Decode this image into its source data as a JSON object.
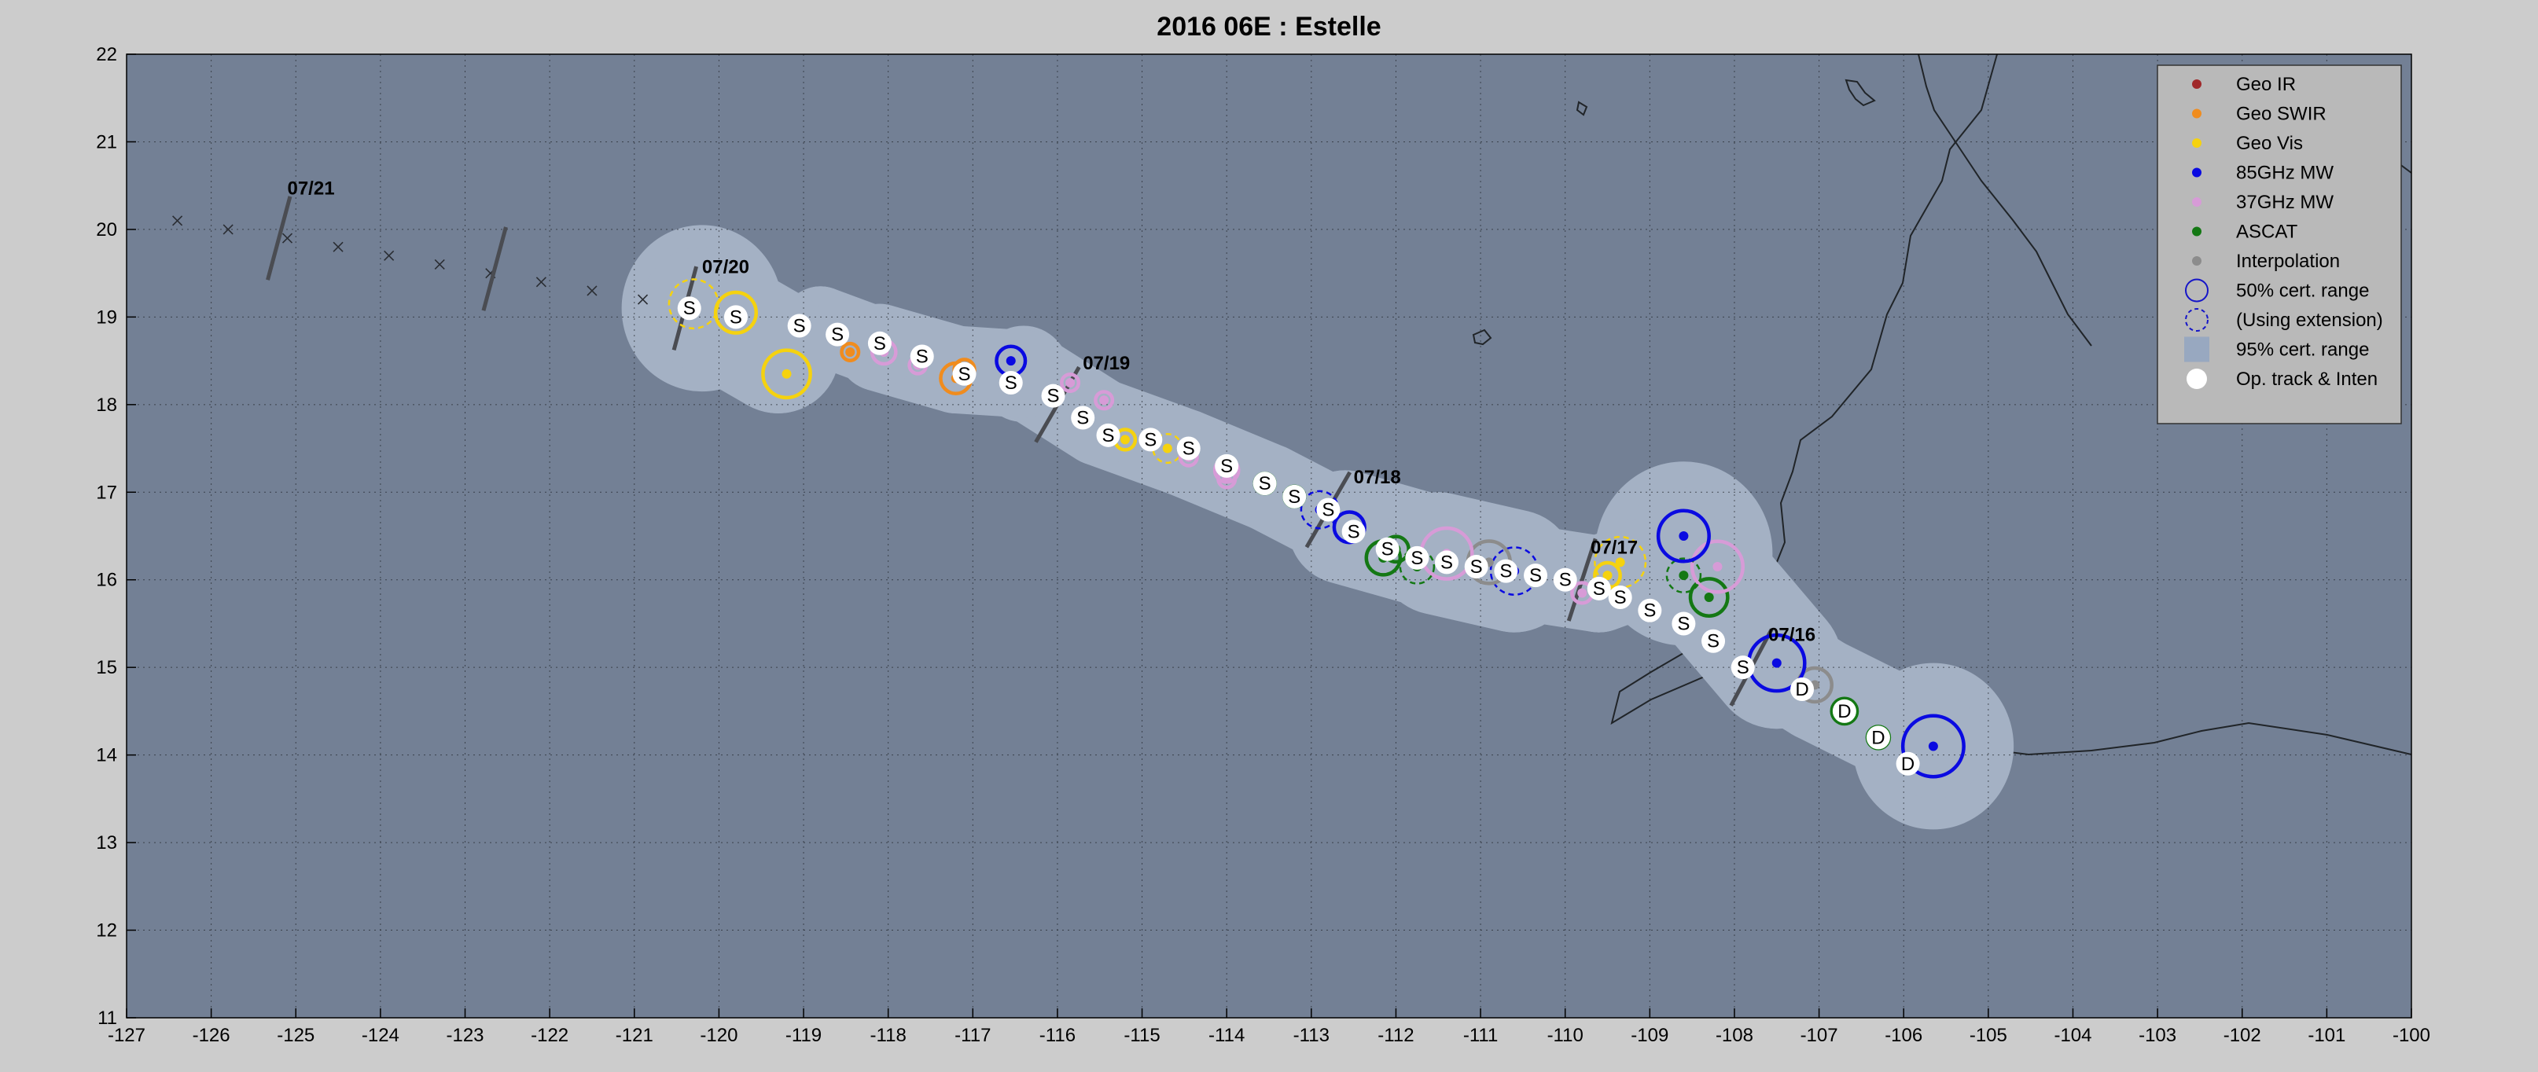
{
  "chart_data": {
    "type": "scatter",
    "title": "2016  06E :  Estelle",
    "xlim": [
      -127,
      -100
    ],
    "ylim": [
      11,
      22
    ],
    "xticks": [
      "-127",
      "-126",
      "-125",
      "-124",
      "-123",
      "-122",
      "-121",
      "-120",
      "-119",
      "-118",
      "-117",
      "-116",
      "-115",
      "-114",
      "-113",
      "-112",
      "-111",
      "-110",
      "-109",
      "-108",
      "-107",
      "-106",
      "-105",
      "-104",
      "-103",
      "-102",
      "-101",
      "-100"
    ],
    "yticks": [
      "11",
      "12",
      "13",
      "14",
      "15",
      "16",
      "17",
      "18",
      "19",
      "20",
      "21",
      "22"
    ],
    "grid": true,
    "legend_position": "top-right",
    "colors": {
      "background": "#cccccc",
      "ocean": "#738095",
      "cone": "#a4b1c4",
      "geo_ir": "#a0282a",
      "geo_swir": "#f08c1e",
      "geo_vis": "#f5d20f",
      "mw85": "#0a0ae1",
      "mw37": "#d79bd7",
      "ascat": "#147814",
      "interp": "#8c8c8c"
    },
    "legend": [
      {
        "label": "Geo IR",
        "kind": "dot",
        "color": "#a0282a"
      },
      {
        "label": "Geo SWIR",
        "kind": "dot",
        "color": "#f08c1e"
      },
      {
        "label": "Geo Vis",
        "kind": "dot",
        "color": "#f5d20f"
      },
      {
        "label": "85GHz MW",
        "kind": "dot",
        "color": "#0a0ae1"
      },
      {
        "label": "37GHz MW",
        "kind": "dot",
        "color": "#d79bd7"
      },
      {
        "label": "ASCAT",
        "kind": "dot",
        "color": "#147814"
      },
      {
        "label": "Interpolation",
        "kind": "dot",
        "color": "#8c8c8c"
      },
      {
        "label": "50% cert. range",
        "kind": "circle"
      },
      {
        "label": "(Using extension)",
        "kind": "dashed"
      },
      {
        "label": "95% cert. range",
        "kind": "square"
      },
      {
        "label": "Op. track & Inten",
        "kind": "white"
      }
    ],
    "date_labels": [
      {
        "text": "07/21",
        "lon": -125.1,
        "lat": 20.4
      },
      {
        "text": "07/20",
        "lon": -120.2,
        "lat": 19.5
      },
      {
        "text": "07/19",
        "lon": -115.7,
        "lat": 18.4
      },
      {
        "text": "07/18",
        "lon": -112.5,
        "lat": 17.1
      },
      {
        "text": "07/17",
        "lon": -109.7,
        "lat": 16.3
      },
      {
        "text": "07/16",
        "lon": -107.6,
        "lat": 15.3
      }
    ],
    "day_marks": [
      {
        "lon": -125.2,
        "lat": 19.9,
        "angle": 75
      },
      {
        "lon": -120.4,
        "lat": 19.1,
        "angle": 75
      },
      {
        "lon": -116.0,
        "lat": 18.0,
        "angle": 60
      },
      {
        "lon": -112.8,
        "lat": 16.8,
        "angle": 60
      },
      {
        "lon": -109.8,
        "lat": 16.0,
        "angle": 72
      },
      {
        "lon": -107.8,
        "lat": 15.0,
        "angle": 62
      },
      {
        "lon": -122.65,
        "lat": 19.55,
        "angle": 75
      }
    ],
    "forecast_track": [
      {
        "lon": -126.4,
        "lat": 20.1
      },
      {
        "lon": -125.8,
        "lat": 20.0
      },
      {
        "lon": -125.1,
        "lat": 19.9
      },
      {
        "lon": -124.5,
        "lat": 19.8
      },
      {
        "lon": -123.9,
        "lat": 19.7
      },
      {
        "lon": -123.3,
        "lat": 19.6
      },
      {
        "lon": -122.7,
        "lat": 19.5
      },
      {
        "lon": -122.1,
        "lat": 19.4
      },
      {
        "lon": -121.5,
        "lat": 19.3
      },
      {
        "lon": -120.9,
        "lat": 19.2
      }
    ],
    "op_track": [
      {
        "lon": -105.95,
        "lat": 13.9,
        "intensity": "D"
      },
      {
        "lon": -106.3,
        "lat": 14.2,
        "intensity": "D"
      },
      {
        "lon": -106.7,
        "lat": 14.5,
        "intensity": "D"
      },
      {
        "lon": -107.2,
        "lat": 14.75,
        "intensity": "D"
      },
      {
        "lon": -107.9,
        "lat": 15.0,
        "intensity": "S"
      },
      {
        "lon": -108.25,
        "lat": 15.3,
        "intensity": "S"
      },
      {
        "lon": -108.6,
        "lat": 15.5,
        "intensity": "S"
      },
      {
        "lon": -109.0,
        "lat": 15.65,
        "intensity": "S"
      },
      {
        "lon": -109.35,
        "lat": 15.8,
        "intensity": "S"
      },
      {
        "lon": -109.6,
        "lat": 15.9,
        "intensity": "S"
      },
      {
        "lon": -110.0,
        "lat": 16.0,
        "intensity": "S"
      },
      {
        "lon": -110.35,
        "lat": 16.05,
        "intensity": "S"
      },
      {
        "lon": -110.7,
        "lat": 16.1,
        "intensity": "S"
      },
      {
        "lon": -111.05,
        "lat": 16.15,
        "intensity": "S"
      },
      {
        "lon": -111.4,
        "lat": 16.2,
        "intensity": "S"
      },
      {
        "lon": -111.75,
        "lat": 16.25,
        "intensity": "S"
      },
      {
        "lon": -112.1,
        "lat": 16.35,
        "intensity": "S"
      },
      {
        "lon": -112.5,
        "lat": 16.55,
        "intensity": "S"
      },
      {
        "lon": -112.8,
        "lat": 16.8,
        "intensity": "S"
      },
      {
        "lon": -113.2,
        "lat": 16.95,
        "intensity": "S"
      },
      {
        "lon": -113.55,
        "lat": 17.1,
        "intensity": "S"
      },
      {
        "lon": -114.0,
        "lat": 17.3,
        "intensity": "S"
      },
      {
        "lon": -114.45,
        "lat": 17.5,
        "intensity": "S"
      },
      {
        "lon": -114.9,
        "lat": 17.6,
        "intensity": "S"
      },
      {
        "lon": -115.4,
        "lat": 17.65,
        "intensity": "S"
      },
      {
        "lon": -115.7,
        "lat": 17.85,
        "intensity": "S"
      },
      {
        "lon": -116.05,
        "lat": 18.1,
        "intensity": "S"
      },
      {
        "lon": -116.55,
        "lat": 18.25,
        "intensity": "S"
      },
      {
        "lon": -117.1,
        "lat": 18.35,
        "intensity": "S"
      },
      {
        "lon": -117.6,
        "lat": 18.55,
        "intensity": "S"
      },
      {
        "lon": -118.1,
        "lat": 18.7,
        "intensity": "S"
      },
      {
        "lon": -118.6,
        "lat": 18.8,
        "intensity": "S"
      },
      {
        "lon": -119.05,
        "lat": 18.9,
        "intensity": "S"
      },
      {
        "lon": -119.8,
        "lat": 19.0,
        "intensity": "S"
      },
      {
        "lon": -120.35,
        "lat": 19.1,
        "intensity": "S"
      }
    ],
    "fixes": [
      {
        "sensor": "mw85",
        "lon": -105.65,
        "lat": 14.1,
        "r": 0.36,
        "dashed": false
      },
      {
        "sensor": "ascat",
        "lon": -106.3,
        "lat": 14.2,
        "r": 0.13,
        "dashed": false
      },
      {
        "sensor": "ascat",
        "lon": -106.7,
        "lat": 14.5,
        "r": 0.15,
        "dashed": false
      },
      {
        "sensor": "interp",
        "lon": -107.05,
        "lat": 14.8,
        "r": 0.2,
        "dashed": false
      },
      {
        "sensor": "mw85",
        "lon": -107.5,
        "lat": 15.05,
        "r": 0.33,
        "dashed": false
      },
      {
        "sensor": "ascat",
        "lon": -108.3,
        "lat": 15.8,
        "r": 0.22,
        "dashed": false
      },
      {
        "sensor": "mw37",
        "lon": -108.2,
        "lat": 16.15,
        "r": 0.3,
        "dashed": false
      },
      {
        "sensor": "ascat",
        "lon": -108.6,
        "lat": 16.05,
        "r": 0.2,
        "dashed": true
      },
      {
        "sensor": "mw85",
        "lon": -108.6,
        "lat": 16.5,
        "r": 0.3,
        "dashed": false
      },
      {
        "sensor": "geo_vis",
        "lon": -109.35,
        "lat": 16.2,
        "r": 0.3,
        "dashed": true
      },
      {
        "sensor": "geo_vis",
        "lon": -109.5,
        "lat": 16.05,
        "r": 0.15,
        "dashed": false
      },
      {
        "sensor": "mw37",
        "lon": -109.8,
        "lat": 15.85,
        "r": 0.12,
        "dashed": false
      },
      {
        "sensor": "mw85",
        "lon": -110.6,
        "lat": 16.1,
        "r": 0.28,
        "dashed": true
      },
      {
        "sensor": "interp",
        "lon": -110.9,
        "lat": 16.2,
        "r": 0.25,
        "dashed": false
      },
      {
        "sensor": "mw37",
        "lon": -111.4,
        "lat": 16.3,
        "r": 0.3,
        "dashed": false
      },
      {
        "sensor": "ascat",
        "lon": -111.75,
        "lat": 16.15,
        "r": 0.2,
        "dashed": true
      },
      {
        "sensor": "ascat",
        "lon": -112.15,
        "lat": 16.25,
        "r": 0.2,
        "dashed": false
      },
      {
        "sensor": "ascat",
        "lon": -112.0,
        "lat": 16.35,
        "r": 0.15,
        "dashed": false
      },
      {
        "sensor": "mw85",
        "lon": -112.55,
        "lat": 16.6,
        "r": 0.18,
        "dashed": false
      },
      {
        "sensor": "mw85",
        "lon": -112.9,
        "lat": 16.8,
        "r": 0.22,
        "dashed": true
      },
      {
        "sensor": "ascat",
        "lon": -113.2,
        "lat": 16.95,
        "r": 0.12,
        "dashed": false
      },
      {
        "sensor": "ascat",
        "lon": -113.55,
        "lat": 17.1,
        "r": 0.12,
        "dashed": false
      },
      {
        "sensor": "mw37",
        "lon": -114.0,
        "lat": 17.25,
        "r": 0.14,
        "dashed": false
      },
      {
        "sensor": "mw37",
        "lon": -114.0,
        "lat": 17.15,
        "r": 0.1,
        "dashed": false
      },
      {
        "sensor": "geo_vis",
        "lon": -114.7,
        "lat": 17.5,
        "r": 0.17,
        "dashed": true
      },
      {
        "sensor": "mw37",
        "lon": -114.45,
        "lat": 17.4,
        "r": 0.1,
        "dashed": false
      },
      {
        "sensor": "geo_vis",
        "lon": -115.2,
        "lat": 17.6,
        "r": 0.12,
        "dashed": false
      },
      {
        "sensor": "mw37",
        "lon": -115.45,
        "lat": 18.05,
        "r": 0.1,
        "dashed": false
      },
      {
        "sensor": "mw37",
        "lon": -115.85,
        "lat": 18.25,
        "r": 0.1,
        "dashed": false
      },
      {
        "sensor": "mw85",
        "lon": -116.55,
        "lat": 18.5,
        "r": 0.17,
        "dashed": false
      },
      {
        "sensor": "geo_swir",
        "lon": -117.2,
        "lat": 18.3,
        "r": 0.18,
        "dashed": false
      },
      {
        "sensor": "geo_swir",
        "lon": -117.1,
        "lat": 18.4,
        "r": 0.12,
        "dashed": false
      },
      {
        "sensor": "mw37",
        "lon": -117.65,
        "lat": 18.45,
        "r": 0.1,
        "dashed": false
      },
      {
        "sensor": "mw37",
        "lon": -118.05,
        "lat": 18.6,
        "r": 0.14,
        "dashed": false
      },
      {
        "sensor": "geo_swir",
        "lon": -118.45,
        "lat": 18.6,
        "r": 0.1,
        "dashed": false
      },
      {
        "sensor": "geo_vis",
        "lon": -119.2,
        "lat": 18.35,
        "r": 0.28,
        "dashed": false
      },
      {
        "sensor": "geo_vis",
        "lon": -119.8,
        "lat": 19.05,
        "r": 0.24,
        "dashed": false
      },
      {
        "sensor": "geo_vis",
        "lon": -120.3,
        "lat": 19.15,
        "r": 0.29,
        "dashed": true
      }
    ],
    "cone_points": [
      {
        "lon": -105.65,
        "lat": 14.1,
        "r": 0.95
      },
      {
        "lon": -107.0,
        "lat": 14.75,
        "r": 0.6
      },
      {
        "lon": -107.5,
        "lat": 15.05,
        "r": 0.75
      },
      {
        "lon": -108.6,
        "lat": 16.3,
        "r": 1.05
      },
      {
        "lon": -109.6,
        "lat": 15.95,
        "r": 0.55
      },
      {
        "lon": -110.6,
        "lat": 16.1,
        "r": 0.7
      },
      {
        "lon": -111.5,
        "lat": 16.3,
        "r": 0.7
      },
      {
        "lon": -112.6,
        "lat": 16.6,
        "r": 0.65
      },
      {
        "lon": -113.5,
        "lat": 17.05,
        "r": 0.5
      },
      {
        "lon": -114.5,
        "lat": 17.45,
        "r": 0.5
      },
      {
        "lon": -115.5,
        "lat": 17.8,
        "r": 0.5
      },
      {
        "lon": -116.4,
        "lat": 18.35,
        "r": 0.55
      },
      {
        "lon": -117.2,
        "lat": 18.4,
        "r": 0.5
      },
      {
        "lon": -118.1,
        "lat": 18.65,
        "r": 0.5
      },
      {
        "lon": -118.8,
        "lat": 18.9,
        "r": 0.45
      },
      {
        "lon": -119.3,
        "lat": 18.6,
        "r": 0.7
      },
      {
        "lon": -120.2,
        "lat": 19.1,
        "r": 0.95
      }
    ]
  }
}
